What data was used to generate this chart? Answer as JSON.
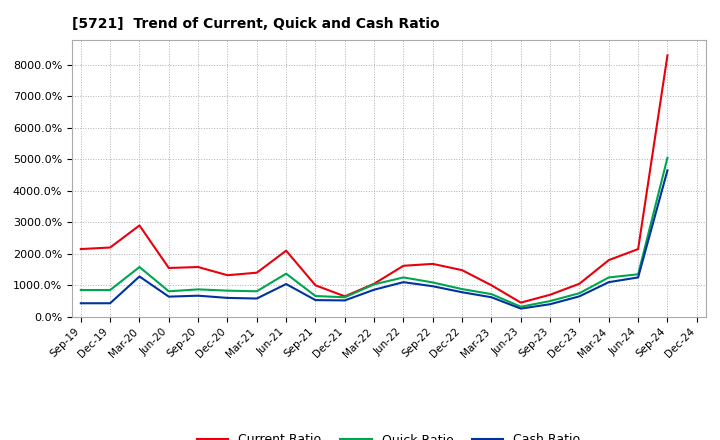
{
  "title": "[5721]  Trend of Current, Quick and Cash Ratio",
  "labels": [
    "Sep-19",
    "Dec-19",
    "Mar-20",
    "Jun-20",
    "Sep-20",
    "Dec-20",
    "Mar-21",
    "Jun-21",
    "Sep-21",
    "Dec-21",
    "Mar-22",
    "Jun-22",
    "Sep-22",
    "Dec-22",
    "Mar-23",
    "Jun-23",
    "Sep-23",
    "Dec-23",
    "Mar-24",
    "Jun-24",
    "Sep-24",
    "Dec-24"
  ],
  "current_ratio": [
    2150,
    2200,
    2900,
    1550,
    1580,
    1320,
    1400,
    2100,
    1000,
    650,
    1050,
    1620,
    1680,
    1480,
    1000,
    450,
    700,
    1050,
    1800,
    2150,
    8300,
    null
  ],
  "quick_ratio": [
    850,
    850,
    1580,
    810,
    870,
    830,
    810,
    1370,
    660,
    620,
    1030,
    1250,
    1090,
    880,
    720,
    320,
    500,
    750,
    1250,
    1350,
    5050,
    null
  ],
  "cash_ratio": [
    430,
    430,
    1280,
    640,
    670,
    600,
    580,
    1040,
    530,
    520,
    860,
    1100,
    970,
    780,
    620,
    260,
    400,
    650,
    1100,
    1250,
    4650,
    null
  ],
  "current_color": "#e8000d",
  "quick_color": "#00a550",
  "cash_color": "#0032a0",
  "bg_color": "#ffffff",
  "plot_bg_color": "#ffffff",
  "grid_color": "#b0b0b0",
  "ylim": [
    0,
    8800
  ],
  "yticks": [
    0,
    1000,
    2000,
    3000,
    4000,
    5000,
    6000,
    7000,
    8000
  ],
  "legend_labels": [
    "Current Ratio",
    "Quick Ratio",
    "Cash Ratio"
  ]
}
